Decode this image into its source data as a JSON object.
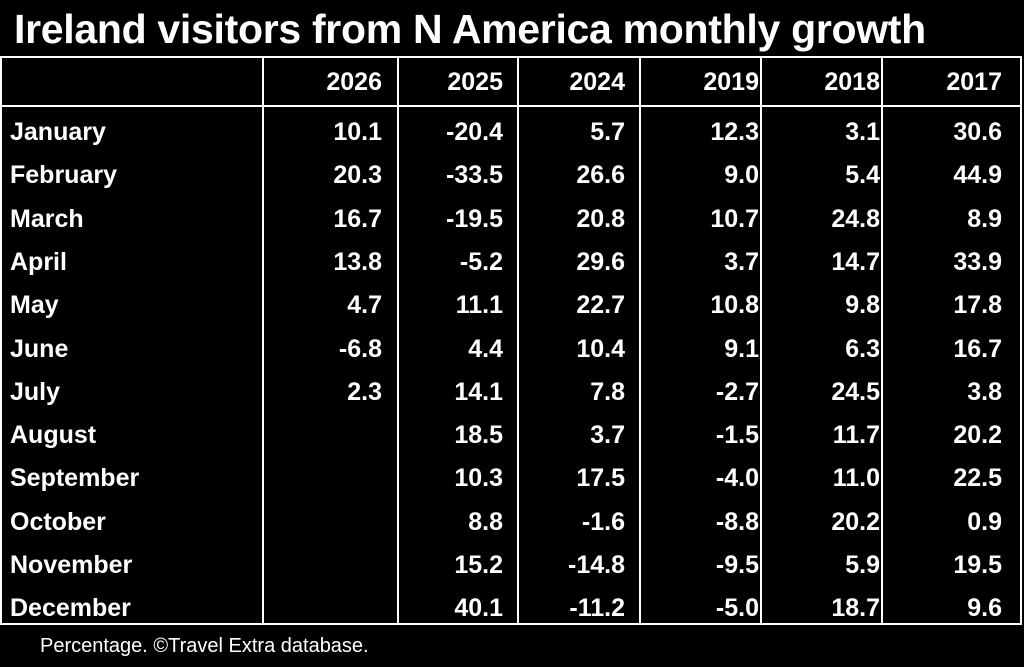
{
  "title": "Ireland visitors from N America monthly growth",
  "footnote": "Percentage. ©Travel Extra database.",
  "colors": {
    "background": "#000000",
    "text": "#ffffff",
    "gridlines": "#ffffff"
  },
  "chart_data": {
    "type": "table",
    "title": "Ireland visitors from N America monthly growth",
    "columns": [
      "2026",
      "2025",
      "2024",
      "2019",
      "2018",
      "2017"
    ],
    "rows": [
      {
        "month": "January",
        "values": [
          "10.1",
          "-20.4",
          "5.7",
          "12.3",
          "3.1",
          "30.6"
        ]
      },
      {
        "month": "February",
        "values": [
          "20.3",
          "-33.5",
          "26.6",
          "9.0",
          "5.4",
          "44.9"
        ]
      },
      {
        "month": "March",
        "values": [
          "16.7",
          "-19.5",
          "20.8",
          "10.7",
          "24.8",
          "8.9"
        ]
      },
      {
        "month": "April",
        "values": [
          "13.8",
          "-5.2",
          "29.6",
          "3.7",
          "14.7",
          "33.9"
        ]
      },
      {
        "month": "May",
        "values": [
          "4.7",
          "11.1",
          "22.7",
          "10.8",
          "9.8",
          "17.8"
        ]
      },
      {
        "month": "June",
        "values": [
          "-6.8",
          "4.4",
          "10.4",
          "9.1",
          "6.3",
          "16.7"
        ]
      },
      {
        "month": "July",
        "values": [
          "2.3",
          "14.1",
          "7.8",
          "-2.7",
          "24.5",
          "3.8"
        ]
      },
      {
        "month": "August",
        "values": [
          "",
          "18.5",
          "3.7",
          "-1.5",
          "11.7",
          "20.2"
        ]
      },
      {
        "month": "September",
        "values": [
          "",
          "10.3",
          "17.5",
          "-4.0",
          "11.0",
          "22.5"
        ]
      },
      {
        "month": "October",
        "values": [
          "",
          "8.8",
          "-1.6",
          "-8.8",
          "20.2",
          "0.9"
        ]
      },
      {
        "month": "November",
        "values": [
          "",
          "15.2",
          "-14.8",
          "-9.5",
          "5.9",
          "19.5"
        ]
      },
      {
        "month": "December",
        "values": [
          "",
          "40.1",
          "-11.2",
          "-5.0",
          "18.7",
          "9.6"
        ]
      }
    ],
    "unit": "Percentage"
  }
}
